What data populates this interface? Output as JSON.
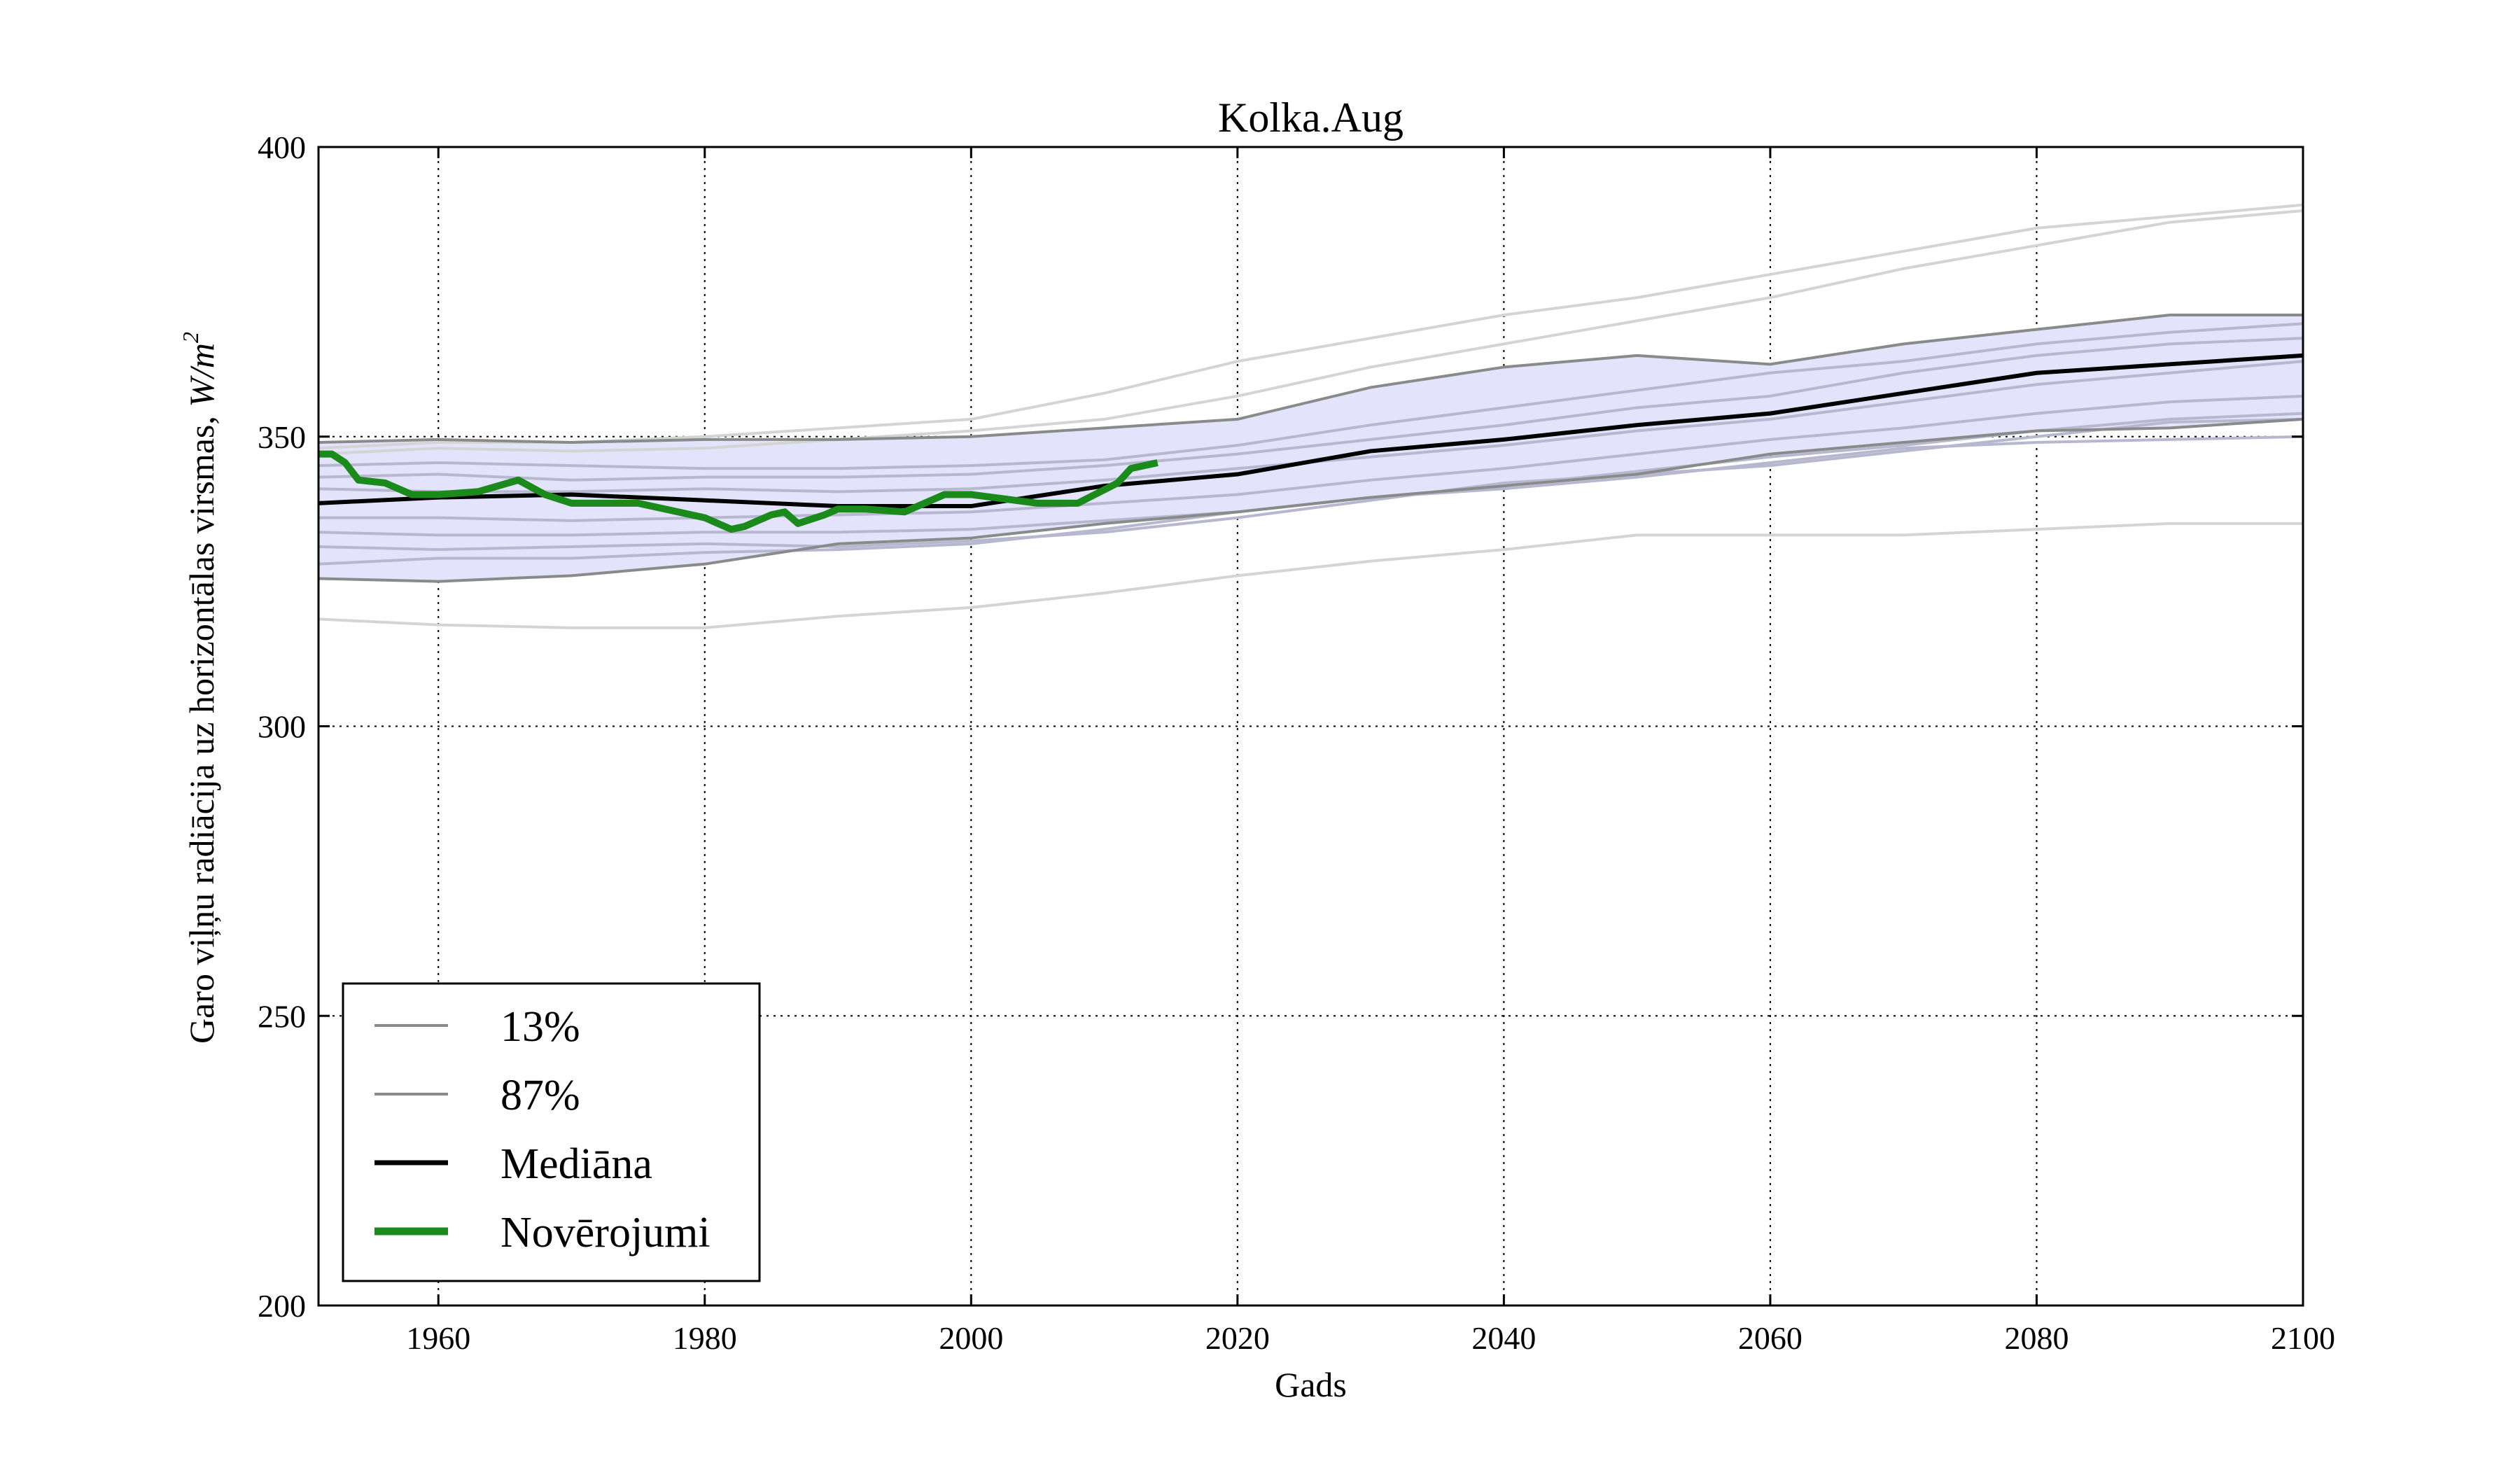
{
  "chart_data": {
    "type": "line",
    "title": "Kolka.Aug",
    "xlabel": "Gads",
    "ylabel_text": "Garo viļņu radiācija uz horizontālas virsmas, ",
    "ylabel_unit": "W/m",
    "ylabel_unit_exp": "2",
    "xlim": [
      1951,
      2100
    ],
    "ylim": [
      200,
      400
    ],
    "xticks": [
      "1960",
      "1980",
      "2000",
      "2020",
      "2040",
      "2060",
      "2080",
      "2100"
    ],
    "yticks": [
      "200",
      "250",
      "300",
      "350",
      "400"
    ],
    "grid": true,
    "legend_position": "lower-left",
    "legend": [
      "13%",
      "87%",
      "Mediāna",
      "Novērojumi"
    ],
    "colors": {
      "band_fill": "#e3e3fb",
      "band_edge": "#8a8a8a",
      "ensemble": "#d4d4d4",
      "ensemble_inner": "#b7b7cf",
      "median": "#000000",
      "observations": "#1a8a1a",
      "grid": "#000000"
    },
    "series": [
      {
        "name": "13%",
        "x": [
          1951,
          1960,
          1970,
          1980,
          1990,
          2000,
          2010,
          2020,
          2030,
          2040,
          2050,
          2060,
          2070,
          2080,
          2090,
          2100
        ],
        "values": [
          325.5,
          325,
          326,
          328,
          331.5,
          332.5,
          335,
          337,
          339.5,
          341.5,
          343.5,
          347,
          349,
          351,
          351.5,
          353
        ]
      },
      {
        "name": "87%",
        "x": [
          1951,
          1960,
          1970,
          1980,
          1990,
          2000,
          2010,
          2020,
          2030,
          2040,
          2050,
          2060,
          2070,
          2080,
          2090,
          2100
        ],
        "values": [
          349,
          349.5,
          349,
          349.5,
          349.5,
          350,
          351.5,
          353,
          358.5,
          362,
          364,
          362.5,
          366,
          368.5,
          371,
          371
        ]
      },
      {
        "name": "Mediāna",
        "x": [
          1951,
          1960,
          1970,
          1980,
          1990,
          2000,
          2010,
          2020,
          2030,
          2040,
          2050,
          2060,
          2070,
          2080,
          2090,
          2100
        ],
        "values": [
          338.5,
          339.5,
          340,
          339,
          338,
          338,
          341.5,
          343.5,
          347.5,
          349.5,
          352,
          354,
          357.5,
          361,
          362.5,
          364
        ]
      },
      {
        "name": "Novērojumi",
        "x": [
          1951,
          1952,
          1953,
          1954,
          1956,
          1958,
          1960,
          1963,
          1966,
          1968,
          1970,
          1975,
          1980,
          1982,
          1983,
          1985,
          1986,
          1987,
          1989,
          1990,
          1992,
          1995,
          1998,
          2000,
          2005,
          2008,
          2011,
          2012,
          2014
        ],
        "values": [
          347,
          347,
          345.5,
          342.5,
          342,
          340,
          340,
          340.5,
          342.5,
          340,
          338.5,
          338.5,
          336,
          334,
          334.5,
          336.5,
          337,
          335,
          336.5,
          337.5,
          337.5,
          337,
          340,
          340,
          338.5,
          338.5,
          342,
          344.5,
          345.5
        ]
      },
      {
        "name": "",
        "x": [
          1951,
          1960,
          1970,
          1980,
          1990,
          2000,
          2010,
          2020,
          2030,
          2040,
          2050,
          2060,
          2070,
          2080,
          2090,
          2100
        ],
        "values": [
          318.5,
          317.5,
          317,
          317,
          319,
          320.5,
          323,
          326,
          328.5,
          330.5,
          333,
          333,
          333,
          334,
          335,
          335
        ]
      },
      {
        "name": "",
        "x": [
          1951,
          1960,
          1970,
          1980,
          1990,
          2000,
          2010,
          2020,
          2030,
          2040,
          2050,
          2060,
          2070,
          2080,
          2090,
          2100
        ],
        "values": [
          348,
          349,
          349,
          350,
          351.5,
          353,
          357.5,
          363,
          367,
          371,
          374,
          378,
          382,
          386,
          388,
          390
        ]
      },
      {
        "name": "",
        "x": [
          1951,
          1960,
          1970,
          1980,
          1990,
          2000,
          2010,
          2020,
          2030,
          2040,
          2050,
          2060,
          2070,
          2080,
          2090,
          2100
        ],
        "values": [
          347,
          348,
          347.5,
          348,
          349.5,
          351,
          353,
          357,
          362,
          366,
          370,
          374,
          379,
          383,
          387,
          389
        ]
      },
      {
        "name": "",
        "x": [
          1951,
          1960,
          1970,
          1980,
          1990,
          2000,
          2010,
          2020,
          2030,
          2040,
          2050,
          2060,
          2070,
          2080,
          2090,
          2100
        ],
        "values": [
          345,
          345.5,
          345,
          344.5,
          344.5,
          345,
          346,
          348.5,
          352,
          355,
          358,
          361,
          363,
          366,
          368,
          369.5
        ]
      },
      {
        "name": "",
        "x": [
          1951,
          1960,
          1970,
          1980,
          1990,
          2000,
          2010,
          2020,
          2030,
          2040,
          2050,
          2060,
          2070,
          2080,
          2090,
          2100
        ],
        "values": [
          343,
          343.5,
          342.5,
          343,
          343,
          343.5,
          345,
          347,
          349.5,
          352,
          355,
          357,
          361,
          364,
          366,
          367
        ]
      },
      {
        "name": "",
        "x": [
          1951,
          1960,
          1970,
          1980,
          1990,
          2000,
          2010,
          2020,
          2030,
          2040,
          2050,
          2060,
          2070,
          2080,
          2090,
          2100
        ],
        "values": [
          341,
          340.5,
          340.5,
          341,
          340.5,
          341,
          342.5,
          344.5,
          346.5,
          348.5,
          351,
          353,
          356,
          359,
          361,
          363
        ]
      },
      {
        "name": "",
        "x": [
          1951,
          1960,
          1970,
          1980,
          1990,
          2000,
          2010,
          2020,
          2030,
          2040,
          2050,
          2060,
          2070,
          2080,
          2090,
          2100
        ],
        "values": [
          336,
          336,
          335.5,
          336,
          336.5,
          337,
          338.5,
          340,
          342.5,
          344.5,
          347,
          349.5,
          351.5,
          354,
          356,
          357
        ]
      },
      {
        "name": "",
        "x": [
          1951,
          1960,
          1970,
          1980,
          1990,
          2000,
          2010,
          2020,
          2030,
          2040,
          2050,
          2060,
          2070,
          2080,
          2090,
          2100
        ],
        "values": [
          333.5,
          333,
          333,
          333.5,
          333.5,
          334,
          335.5,
          337,
          339.5,
          341.5,
          344,
          346.5,
          348.5,
          351,
          353,
          354
        ]
      },
      {
        "name": "",
        "x": [
          1951,
          1960,
          1970,
          1980,
          1990,
          2000,
          2010,
          2020,
          2030,
          2040,
          2050,
          2060,
          2070,
          2080,
          2090,
          2100
        ],
        "values": [
          331,
          330.5,
          331,
          331.5,
          331,
          332,
          333.5,
          336,
          339,
          342,
          343.5,
          345,
          347.5,
          350,
          352.5,
          353
        ]
      },
      {
        "name": "",
        "x": [
          1951,
          1960,
          1970,
          1980,
          1990,
          2000,
          2010,
          2020,
          2030,
          2040,
          2050,
          2060,
          2070,
          2080,
          2090,
          2100
        ],
        "values": [
          328,
          329,
          329,
          330,
          330.5,
          331.5,
          334,
          337,
          339.5,
          341,
          343,
          345.5,
          348,
          349,
          349.5,
          350
        ]
      }
    ]
  }
}
